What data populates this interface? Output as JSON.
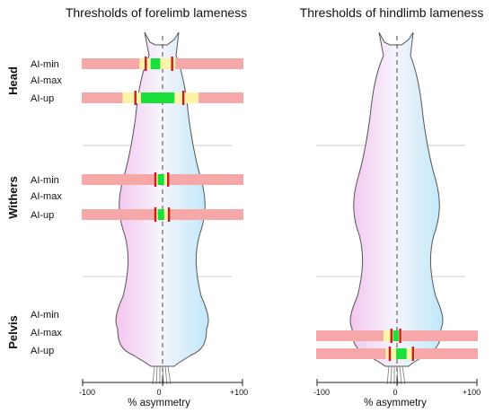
{
  "panels": [
    {
      "title": "Thresholds of forelimb lameness",
      "ticks": [
        "-100",
        "0",
        "+100"
      ],
      "axis_label": "% asymmetry",
      "rows": {
        "head": {
          "ai_min": {
            "red": [
              -21,
              12
            ],
            "green": [
              -15,
              -3
            ],
            "yellow": [
              -29,
              16
            ]
          },
          "ai_up": {
            "red": [
              -34,
              26
            ],
            "green": [
              -27,
              15
            ],
            "yellow": [
              -50,
              45
            ]
          }
        },
        "withers": {
          "ai_min": {
            "red": [
              -9,
              7
            ],
            "green": [
              -6,
              2
            ],
            "yellow": [
              -10,
              8
            ]
          },
          "ai_up": {
            "red": [
              -9,
              8
            ],
            "green": [
              -6,
              2
            ],
            "yellow": [
              -10,
              9
            ]
          }
        }
      }
    },
    {
      "title": "Thresholds of hindlimb lameness",
      "ticks": [
        "-100",
        "0",
        "+100"
      ],
      "axis_label": "% asymmetry",
      "rows": {
        "pelvis": {
          "ai_max": {
            "red": [
              -7,
              4
            ],
            "green": [
              -5,
              2
            ],
            "yellow": [
              -17,
              6
            ]
          },
          "ai_up": {
            "red": [
              -9,
              20
            ],
            "green": [
              -1,
              12
            ],
            "yellow": [
              -14,
              22
            ]
          }
        }
      }
    }
  ],
  "sections": [
    "Head",
    "Withers",
    "Pelvis"
  ],
  "row_labels": {
    "head": [
      "AI-min",
      "AI-max",
      "AI-up"
    ],
    "withers": [
      "AI-min",
      "AI-max",
      "AI-up"
    ],
    "pelvis": [
      "AI-min",
      "AI-max",
      "AI-up"
    ]
  },
  "colors": {
    "band": "#f6a8a8",
    "red": "#d3181b",
    "green": "#19e03a",
    "yellow": "#fbf3a6",
    "outline": "#555555",
    "axis": "#222222",
    "divider": "#cfcfcf",
    "pink": "#f5c8f1",
    "blue": "#c3ebfa"
  }
}
